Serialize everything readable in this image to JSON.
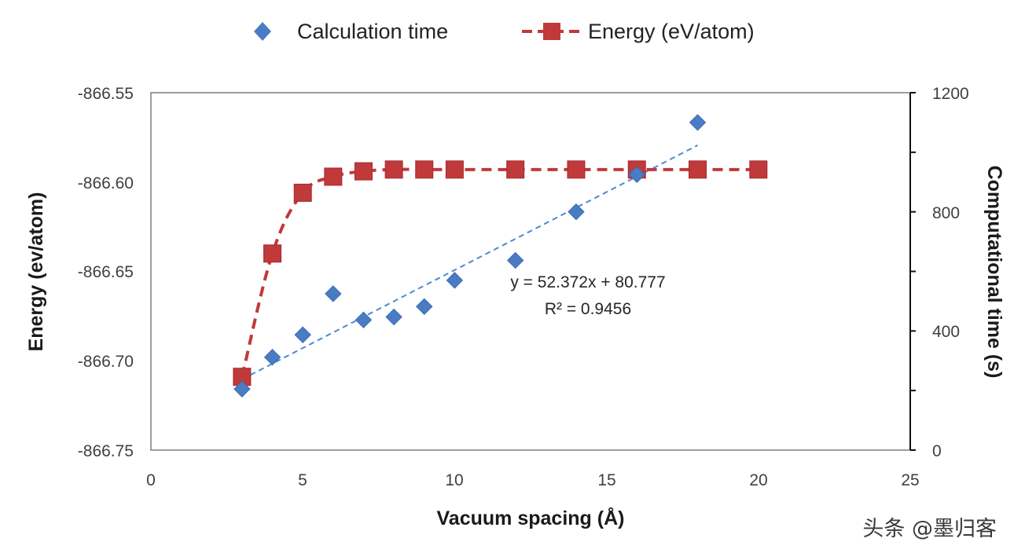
{
  "chart_data": {
    "type": "scatter",
    "title": "",
    "xlabel": "Vacuum spacing (Å)",
    "ylabel": "Energy (ev/atom)",
    "y2label": "Computational time (s)",
    "xlim": [
      0,
      25
    ],
    "ylim": [
      -866.75,
      -866.55
    ],
    "y2lim": [
      0,
      1200
    ],
    "x_ticks": [
      "0",
      "5",
      "10",
      "15",
      "20",
      "25"
    ],
    "y_ticks": [
      "-866.55",
      "-866.60",
      "-866.65",
      "-866.70",
      "-866.75"
    ],
    "y2_ticks": [
      "1200",
      "800",
      "400",
      "0"
    ],
    "legend_position": "top",
    "grid": false,
    "series": [
      {
        "name": "Calculation time",
        "axis": "right",
        "marker": "diamond",
        "color": "#4a7cc4",
        "x": [
          3,
          4,
          5,
          6,
          7,
          8,
          9,
          10,
          12,
          14,
          16,
          18
        ],
        "y": [
          205,
          312,
          387,
          525,
          437,
          447,
          482,
          570,
          637,
          800,
          925,
          1100
        ]
      },
      {
        "name": "Energy (eV/atom)",
        "axis": "left",
        "marker": "square",
        "line": "dashed",
        "color": "#c0393b",
        "x": [
          3,
          4,
          5,
          6,
          7,
          8,
          9,
          10,
          12,
          14,
          16,
          18,
          20
        ],
        "y": [
          -866.709,
          -866.64,
          -866.606,
          -866.597,
          -866.594,
          -866.593,
          -866.593,
          -866.593,
          -866.593,
          -866.593,
          -866.593,
          -866.593,
          -866.593
        ]
      }
    ],
    "trendline": {
      "series": "Calculation time",
      "type": "linear",
      "color": "#4a8ad4",
      "x_range": [
        3,
        18
      ],
      "slope": 52.372,
      "intercept": 80.777
    },
    "annotations": {
      "equation": "y = 52.372x + 80.777",
      "r_squared": "R² = 0.9456"
    }
  },
  "watermark": "头条 @墨归客"
}
